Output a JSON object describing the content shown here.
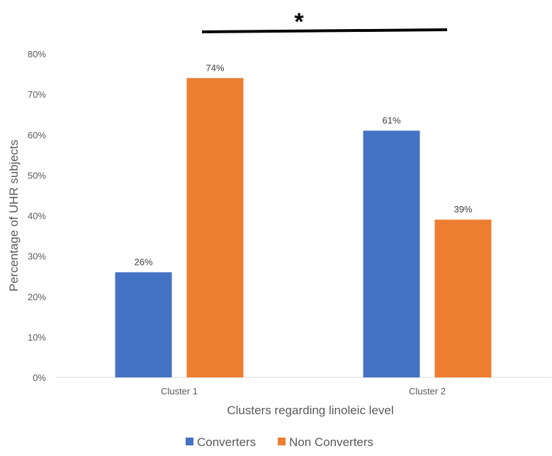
{
  "chart_data": {
    "type": "bar",
    "categories": [
      "Cluster 1",
      "Cluster 2"
    ],
    "series": [
      {
        "name": "Converters",
        "values": [
          26,
          61
        ],
        "labels": [
          "26%",
          "61%"
        ],
        "color": "#4472C4"
      },
      {
        "name": "Non Converters",
        "values": [
          74,
          39
        ],
        "labels": [
          "74%",
          "39%"
        ],
        "color": "#ED7D31"
      }
    ],
    "xlabel": "Clusters regarding linoleic level",
    "ylabel": "Percentage of UHR subjects",
    "ylim": [
      0,
      80
    ],
    "yticks": [
      "0%",
      "10%",
      "20%",
      "30%",
      "40%",
      "50%",
      "60%",
      "70%",
      "80%"
    ],
    "grid": false,
    "legend_position": "bottom",
    "annotation": {
      "text": "*",
      "type": "significance bracket spanning Cluster 1 and Cluster 2"
    }
  }
}
